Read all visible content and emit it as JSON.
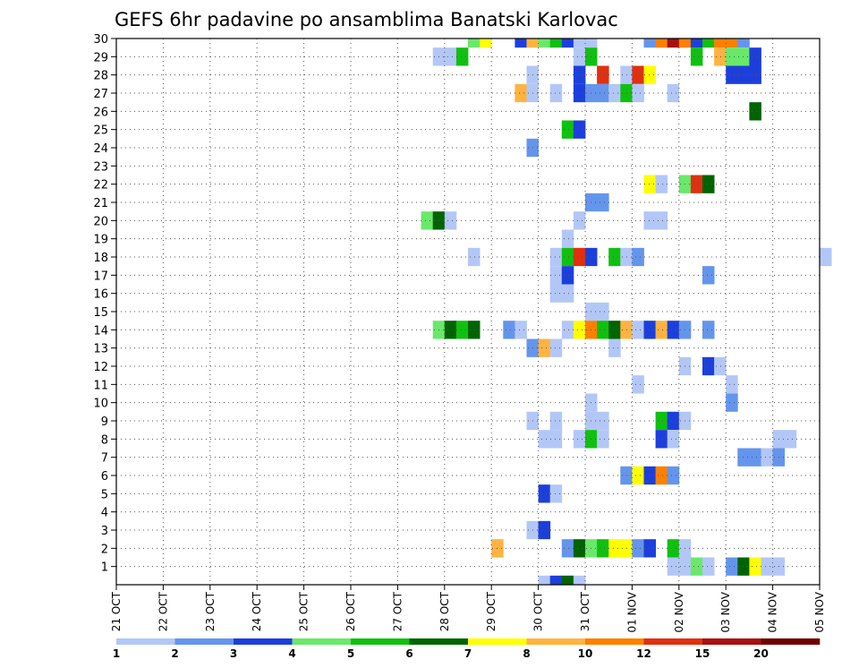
{
  "chart_data": {
    "type": "heatmap",
    "title": "GEFS 6hr padavine po ansamblima Banatski Karlovac",
    "x_ticks": [
      "21 OCT",
      "22 OCT",
      "23 OCT",
      "24 OCT",
      "25 OCT",
      "26 OCT",
      "27 OCT",
      "28 OCT",
      "29 OCT",
      "30 OCT",
      "31 OCT",
      "01 NOV",
      "02 NOV",
      "03 NOV",
      "04 NOV",
      "05 NOV"
    ],
    "y_ticks": [
      1,
      2,
      3,
      4,
      5,
      6,
      7,
      8,
      9,
      10,
      11,
      12,
      13,
      14,
      15,
      16,
      17,
      18,
      19,
      20,
      21,
      22,
      23,
      24,
      25,
      26,
      27,
      28,
      29,
      30
    ],
    "xlim": [
      "21 OCT",
      "05 NOV"
    ],
    "ylim": [
      0,
      30
    ],
    "grid": true,
    "legend": {
      "position": "bottom",
      "colors": [
        "#b3c7f7",
        "#6495ed",
        "#1c3fdc",
        "#6ae86a",
        "#10c010",
        "#006400",
        "#ffff00",
        "#ffb340",
        "#ff7f00",
        "#e03010",
        "#a81010",
        "#6b0000"
      ],
      "labels": [
        "1",
        "2",
        "3",
        "4",
        "5",
        "6",
        "7",
        "8",
        "10",
        "12",
        "15",
        "20"
      ]
    },
    "cells": [
      {
        "day": 7.5,
        "member": 30,
        "value": 4
      },
      {
        "day": 7.75,
        "member": 30,
        "value": 7
      },
      {
        "day": 8.5,
        "member": 30,
        "value": 3
      },
      {
        "day": 8.75,
        "member": 30,
        "value": 8
      },
      {
        "day": 9.0,
        "member": 30,
        "value": 4
      },
      {
        "day": 9.25,
        "member": 30,
        "value": 5
      },
      {
        "day": 9.5,
        "member": 30,
        "value": 3
      },
      {
        "day": 9.75,
        "member": 30,
        "value": 1
      },
      {
        "day": 10.0,
        "member": 30,
        "value": 1
      },
      {
        "day": 11.25,
        "member": 30,
        "value": 2
      },
      {
        "day": 11.5,
        "member": 30,
        "value": 10
      },
      {
        "day": 11.75,
        "member": 30,
        "value": 15
      },
      {
        "day": 12.0,
        "member": 30,
        "value": 10
      },
      {
        "day": 12.25,
        "member": 30,
        "value": 3
      },
      {
        "day": 12.5,
        "member": 30,
        "value": 5
      },
      {
        "day": 12.75,
        "member": 30,
        "value": 10
      },
      {
        "day": 13.0,
        "member": 30,
        "value": 10
      },
      {
        "day": 13.25,
        "member": 30,
        "value": 2
      },
      {
        "day": 6.75,
        "member": 29,
        "value": 1
      },
      {
        "day": 7.0,
        "member": 29,
        "value": 1
      },
      {
        "day": 7.25,
        "member": 29,
        "value": 5
      },
      {
        "day": 9.75,
        "member": 29,
        "value": 1
      },
      {
        "day": 10.0,
        "member": 29,
        "value": 5
      },
      {
        "day": 12.25,
        "member": 29,
        "value": 5
      },
      {
        "day": 12.75,
        "member": 29,
        "value": 8
      },
      {
        "day": 13.0,
        "member": 29,
        "value": 4
      },
      {
        "day": 13.25,
        "member": 29,
        "value": 4
      },
      {
        "day": 13.5,
        "member": 29,
        "value": 3
      },
      {
        "day": 8.75,
        "member": 28,
        "value": 1
      },
      {
        "day": 9.75,
        "member": 28,
        "value": 3
      },
      {
        "day": 10.25,
        "member": 28,
        "value": 12
      },
      {
        "day": 10.75,
        "member": 28,
        "value": 1
      },
      {
        "day": 11.0,
        "member": 28,
        "value": 12
      },
      {
        "day": 11.25,
        "member": 28,
        "value": 7
      },
      {
        "day": 13.0,
        "member": 28,
        "value": 3
      },
      {
        "day": 13.25,
        "member": 28,
        "value": 3
      },
      {
        "day": 13.5,
        "member": 28,
        "value": 3
      },
      {
        "day": 8.5,
        "member": 27,
        "value": 8
      },
      {
        "day": 8.75,
        "member": 27,
        "value": 1
      },
      {
        "day": 9.25,
        "member": 27,
        "value": 1
      },
      {
        "day": 9.75,
        "member": 27,
        "value": 3
      },
      {
        "day": 10.0,
        "member": 27,
        "value": 2
      },
      {
        "day": 10.25,
        "member": 27,
        "value": 2
      },
      {
        "day": 10.5,
        "member": 27,
        "value": 1
      },
      {
        "day": 10.75,
        "member": 27,
        "value": 5
      },
      {
        "day": 11.0,
        "member": 27,
        "value": 1
      },
      {
        "day": 11.75,
        "member": 27,
        "value": 1
      },
      {
        "day": 13.5,
        "member": 26,
        "value": 6
      },
      {
        "day": 9.5,
        "member": 25,
        "value": 5
      },
      {
        "day": 9.75,
        "member": 25,
        "value": 3
      },
      {
        "day": 8.75,
        "member": 24,
        "value": 2
      },
      {
        "day": 11.25,
        "member": 22,
        "value": 7
      },
      {
        "day": 11.5,
        "member": 22,
        "value": 1
      },
      {
        "day": 12.0,
        "member": 22,
        "value": 4
      },
      {
        "day": 12.25,
        "member": 22,
        "value": 12
      },
      {
        "day": 12.5,
        "member": 22,
        "value": 6
      },
      {
        "day": 10.0,
        "member": 21,
        "value": 2
      },
      {
        "day": 10.25,
        "member": 21,
        "value": 2
      },
      {
        "day": 6.5,
        "member": 20,
        "value": 4
      },
      {
        "day": 6.75,
        "member": 20,
        "value": 6
      },
      {
        "day": 7.0,
        "member": 20,
        "value": 1
      },
      {
        "day": 9.75,
        "member": 20,
        "value": 1
      },
      {
        "day": 11.25,
        "member": 20,
        "value": 1
      },
      {
        "day": 11.5,
        "member": 20,
        "value": 1
      },
      {
        "day": 9.5,
        "member": 19,
        "value": 1
      },
      {
        "day": 7.5,
        "member": 18,
        "value": 1
      },
      {
        "day": 9.25,
        "member": 18,
        "value": 1
      },
      {
        "day": 9.5,
        "member": 18,
        "value": 5
      },
      {
        "day": 9.75,
        "member": 18,
        "value": 12
      },
      {
        "day": 10.0,
        "member": 18,
        "value": 3
      },
      {
        "day": 10.5,
        "member": 18,
        "value": 5
      },
      {
        "day": 10.75,
        "member": 18,
        "value": 1
      },
      {
        "day": 11.0,
        "member": 18,
        "value": 2
      },
      {
        "day": 15.0,
        "member": 18,
        "value": 1
      },
      {
        "day": 9.25,
        "member": 17,
        "value": 1
      },
      {
        "day": 9.5,
        "member": 17,
        "value": 3
      },
      {
        "day": 12.5,
        "member": 17,
        "value": 2
      },
      {
        "day": 9.25,
        "member": 16,
        "value": 1
      },
      {
        "day": 9.5,
        "member": 16,
        "value": 1
      },
      {
        "day": 10.0,
        "member": 15,
        "value": 1
      },
      {
        "day": 10.25,
        "member": 15,
        "value": 1
      },
      {
        "day": 6.75,
        "member": 14,
        "value": 4
      },
      {
        "day": 7.0,
        "member": 14,
        "value": 6
      },
      {
        "day": 7.25,
        "member": 14,
        "value": 5
      },
      {
        "day": 7.5,
        "member": 14,
        "value": 6
      },
      {
        "day": 8.25,
        "member": 14,
        "value": 2
      },
      {
        "day": 8.5,
        "member": 14,
        "value": 1
      },
      {
        "day": 9.5,
        "member": 14,
        "value": 1
      },
      {
        "day": 9.75,
        "member": 14,
        "value": 7
      },
      {
        "day": 10.0,
        "member": 14,
        "value": 10
      },
      {
        "day": 10.25,
        "member": 14,
        "value": 5
      },
      {
        "day": 10.5,
        "member": 14,
        "value": 6
      },
      {
        "day": 10.75,
        "member": 14,
        "value": 8
      },
      {
        "day": 11.0,
        "member": 14,
        "value": 1
      },
      {
        "day": 11.25,
        "member": 14,
        "value": 3
      },
      {
        "day": 11.5,
        "member": 14,
        "value": 8
      },
      {
        "day": 11.75,
        "member": 14,
        "value": 3
      },
      {
        "day": 12.0,
        "member": 14,
        "value": 2
      },
      {
        "day": 12.5,
        "member": 14,
        "value": 2
      },
      {
        "day": 8.75,
        "member": 13,
        "value": 2
      },
      {
        "day": 9.0,
        "member": 13,
        "value": 8
      },
      {
        "day": 9.25,
        "member": 13,
        "value": 1
      },
      {
        "day": 10.5,
        "member": 13,
        "value": 1
      },
      {
        "day": 12.0,
        "member": 12,
        "value": 1
      },
      {
        "day": 12.5,
        "member": 12,
        "value": 3
      },
      {
        "day": 12.75,
        "member": 12,
        "value": 1
      },
      {
        "day": 11.0,
        "member": 11,
        "value": 1
      },
      {
        "day": 13.0,
        "member": 11,
        "value": 1
      },
      {
        "day": 10.0,
        "member": 10,
        "value": 1
      },
      {
        "day": 13.0,
        "member": 10,
        "value": 2
      },
      {
        "day": 8.75,
        "member": 9,
        "value": 1
      },
      {
        "day": 9.25,
        "member": 9,
        "value": 1
      },
      {
        "day": 10.0,
        "member": 9,
        "value": 1
      },
      {
        "day": 10.25,
        "member": 9,
        "value": 1
      },
      {
        "day": 11.5,
        "member": 9,
        "value": 5
      },
      {
        "day": 11.75,
        "member": 9,
        "value": 3
      },
      {
        "day": 12.0,
        "member": 9,
        "value": 1
      },
      {
        "day": 9.0,
        "member": 8,
        "value": 1
      },
      {
        "day": 9.25,
        "member": 8,
        "value": 1
      },
      {
        "day": 9.75,
        "member": 8,
        "value": 1
      },
      {
        "day": 10.0,
        "member": 8,
        "value": 5
      },
      {
        "day": 10.25,
        "member": 8,
        "value": 1
      },
      {
        "day": 11.5,
        "member": 8,
        "value": 3
      },
      {
        "day": 11.75,
        "member": 8,
        "value": 1
      },
      {
        "day": 14.0,
        "member": 8,
        "value": 1
      },
      {
        "day": 14.25,
        "member": 8,
        "value": 1
      },
      {
        "day": 13.25,
        "member": 7,
        "value": 2
      },
      {
        "day": 13.5,
        "member": 7,
        "value": 2
      },
      {
        "day": 13.75,
        "member": 7,
        "value": 1
      },
      {
        "day": 14.0,
        "member": 7,
        "value": 2
      },
      {
        "day": 10.75,
        "member": 6,
        "value": 2
      },
      {
        "day": 11.0,
        "member": 6,
        "value": 7
      },
      {
        "day": 11.25,
        "member": 6,
        "value": 3
      },
      {
        "day": 11.5,
        "member": 6,
        "value": 10
      },
      {
        "day": 11.75,
        "member": 6,
        "value": 2
      },
      {
        "day": 9.0,
        "member": 5,
        "value": 3
      },
      {
        "day": 9.25,
        "member": 5,
        "value": 1
      },
      {
        "day": 8.75,
        "member": 3,
        "value": 1
      },
      {
        "day": 9.0,
        "member": 3,
        "value": 3
      },
      {
        "day": 8.0,
        "member": 2,
        "value": 8
      },
      {
        "day": 9.5,
        "member": 2,
        "value": 2
      },
      {
        "day": 9.75,
        "member": 2,
        "value": 6
      },
      {
        "day": 10.0,
        "member": 2,
        "value": 4
      },
      {
        "day": 10.25,
        "member": 2,
        "value": 5
      },
      {
        "day": 10.5,
        "member": 2,
        "value": 7
      },
      {
        "day": 10.75,
        "member": 2,
        "value": 7
      },
      {
        "day": 11.0,
        "member": 2,
        "value": 2
      },
      {
        "day": 11.25,
        "member": 2,
        "value": 3
      },
      {
        "day": 11.75,
        "member": 2,
        "value": 5
      },
      {
        "day": 12.0,
        "member": 2,
        "value": 1
      },
      {
        "day": 11.75,
        "member": 1,
        "value": 1
      },
      {
        "day": 12.0,
        "member": 1,
        "value": 1
      },
      {
        "day": 12.25,
        "member": 1,
        "value": 4
      },
      {
        "day": 12.5,
        "member": 1,
        "value": 1
      },
      {
        "day": 13.0,
        "member": 1,
        "value": 2
      },
      {
        "day": 13.25,
        "member": 1,
        "value": 6
      },
      {
        "day": 13.5,
        "member": 1,
        "value": 7
      },
      {
        "day": 13.75,
        "member": 1,
        "value": 1
      },
      {
        "day": 14.0,
        "member": 1,
        "value": 1
      },
      {
        "day": 9.0,
        "member": 0,
        "value": 1
      },
      {
        "day": 9.25,
        "member": 0,
        "value": 3
      },
      {
        "day": 9.5,
        "member": 0,
        "value": 6
      },
      {
        "day": 9.75,
        "member": 0,
        "value": 1
      }
    ]
  }
}
